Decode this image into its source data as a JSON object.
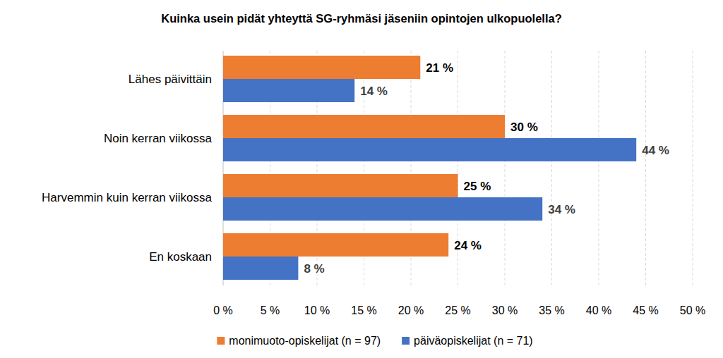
{
  "chart_data": {
    "type": "bar",
    "orientation": "horizontal",
    "title": "Kuinka usein pidät yhteyttä SG-ryhmäsi jäseniin opintojen ulkopuolella?",
    "categories": [
      "Lähes päivittäin",
      "Noin kerran viikossa",
      "Harvemmin kuin kerran viikossa",
      "En koskaan"
    ],
    "series": [
      {
        "name": "monimuoto-opiskelijat (n = 97)",
        "color": "#ed7d31",
        "values": [
          21,
          30,
          25,
          24
        ],
        "value_labels": [
          "21 %",
          "30 %",
          "25 %",
          "24 %"
        ]
      },
      {
        "name": "päiväopiskelijat (n = 71)",
        "color": "#4472c4",
        "values": [
          14,
          44,
          34,
          8
        ],
        "value_labels": [
          "14 %",
          "44 %",
          "34 %",
          "8 %"
        ]
      }
    ],
    "xlim": [
      0,
      50
    ],
    "xticks": [
      {
        "value": 0,
        "label": "0 %"
      },
      {
        "value": 5,
        "label": "5 %"
      },
      {
        "value": 10,
        "label": "10 %"
      },
      {
        "value": 15,
        "label": "15 %"
      },
      {
        "value": 20,
        "label": "20 %"
      },
      {
        "value": 25,
        "label": "25 %"
      },
      {
        "value": 30,
        "label": "30 %"
      },
      {
        "value": 35,
        "label": "35 %"
      },
      {
        "value": 40,
        "label": "40 %"
      },
      {
        "value": 45,
        "label": "45 %"
      },
      {
        "value": 50,
        "label": "50 %"
      }
    ],
    "grid": true,
    "data_labels": true,
    "legend": "bottom"
  }
}
